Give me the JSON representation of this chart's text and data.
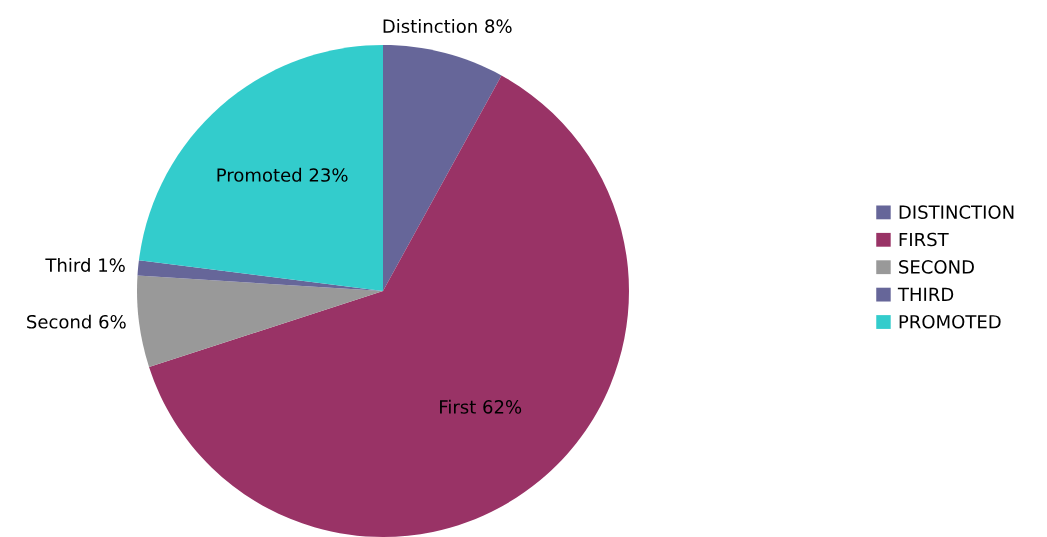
{
  "chart_data": {
    "type": "pie",
    "categories": [
      "DISTINCTION",
      "FIRST",
      "SECOND",
      "THIRD",
      "PROMOTED"
    ],
    "values": [
      8,
      62,
      6,
      1,
      23
    ],
    "colors": [
      "#666699",
      "#993366",
      "#999999",
      "#666699",
      "#33cccc"
    ],
    "value_labels": [
      "Distinction 8%",
      "First 62%",
      "Second 6%",
      "Third 1%",
      "Promoted 23%"
    ],
    "legend": "right"
  }
}
